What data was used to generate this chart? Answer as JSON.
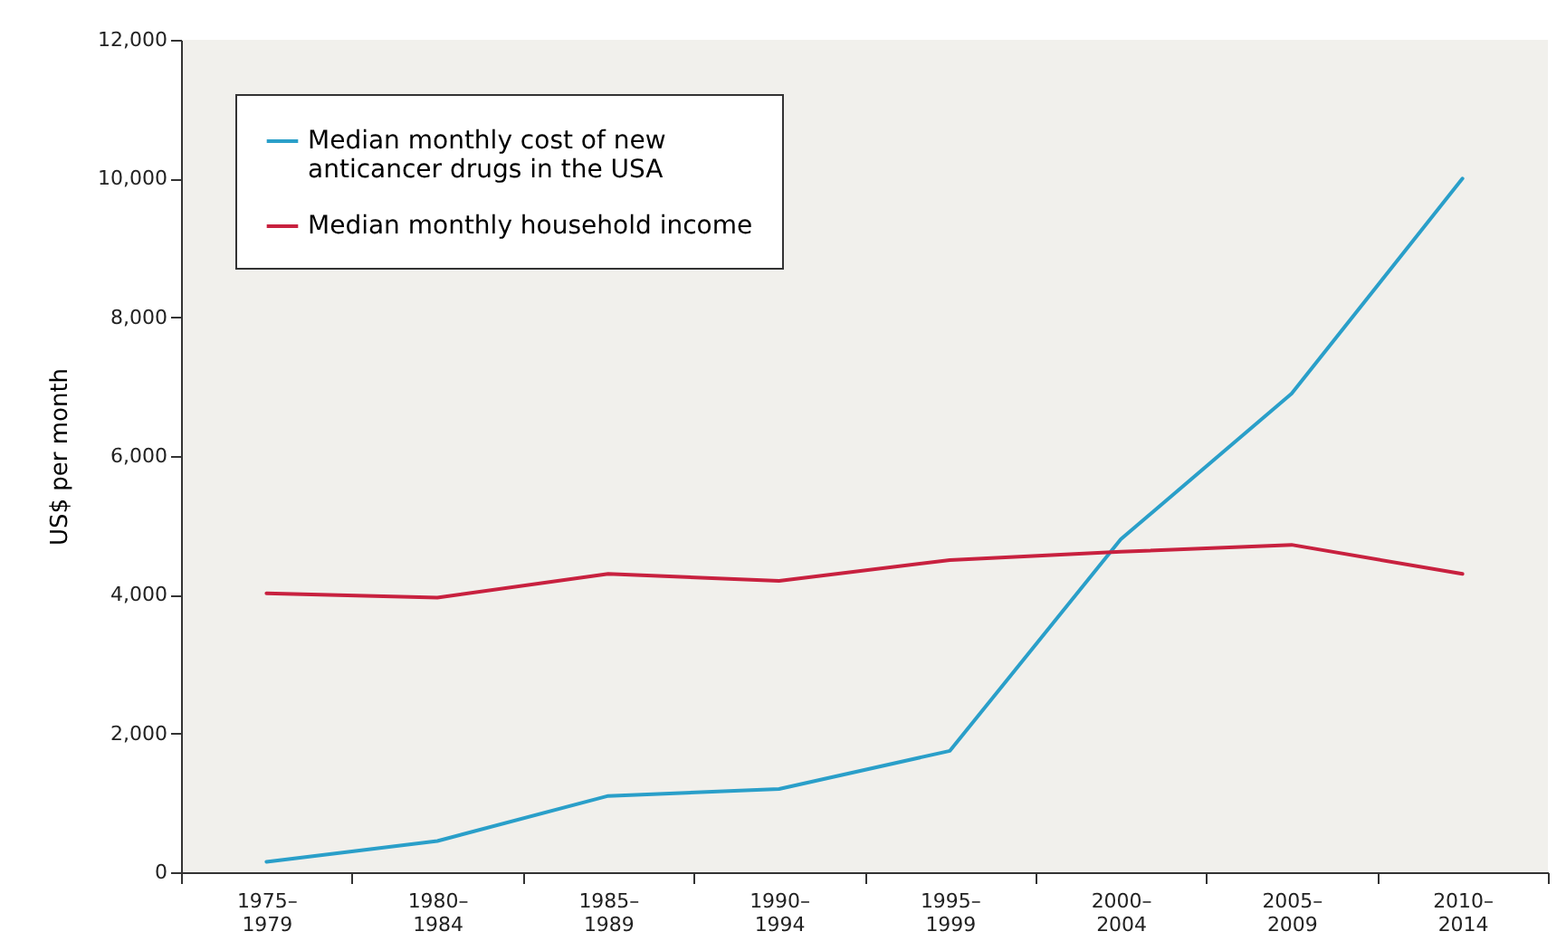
{
  "chart_data": {
    "type": "line",
    "ylabel": "US$ per month",
    "categories": [
      "1975–1979",
      "1980–1984",
      "1985–1989",
      "1990–1994",
      "1995–1999",
      "2000–2004",
      "2005–2009",
      "2010–2014"
    ],
    "series": [
      {
        "name": "Median monthly cost of new anticancer drugs in the USA",
        "color": "#2a9fc9",
        "values": [
          150,
          450,
          1100,
          1200,
          1750,
          4800,
          6900,
          10000
        ]
      },
      {
        "name": "Median monthly household income",
        "color": "#c8213f",
        "values": [
          4020,
          3960,
          4300,
          4200,
          4500,
          4620,
          4720,
          4300
        ]
      }
    ],
    "ylim": [
      0,
      12000
    ],
    "yticks": [
      0,
      {
        "value": 2000,
        "label": "2,000"
      },
      {
        "value": 4000,
        "label": "4,000"
      },
      {
        "value": 6000,
        "label": "6,000"
      },
      {
        "value": 8000,
        "label": "8,000"
      },
      {
        "value": 10000,
        "label": "10,000"
      },
      {
        "value": 12000,
        "label": "12,000"
      }
    ],
    "grid": false,
    "legend": "top left",
    "marker": "none",
    "line_style": "solid"
  }
}
